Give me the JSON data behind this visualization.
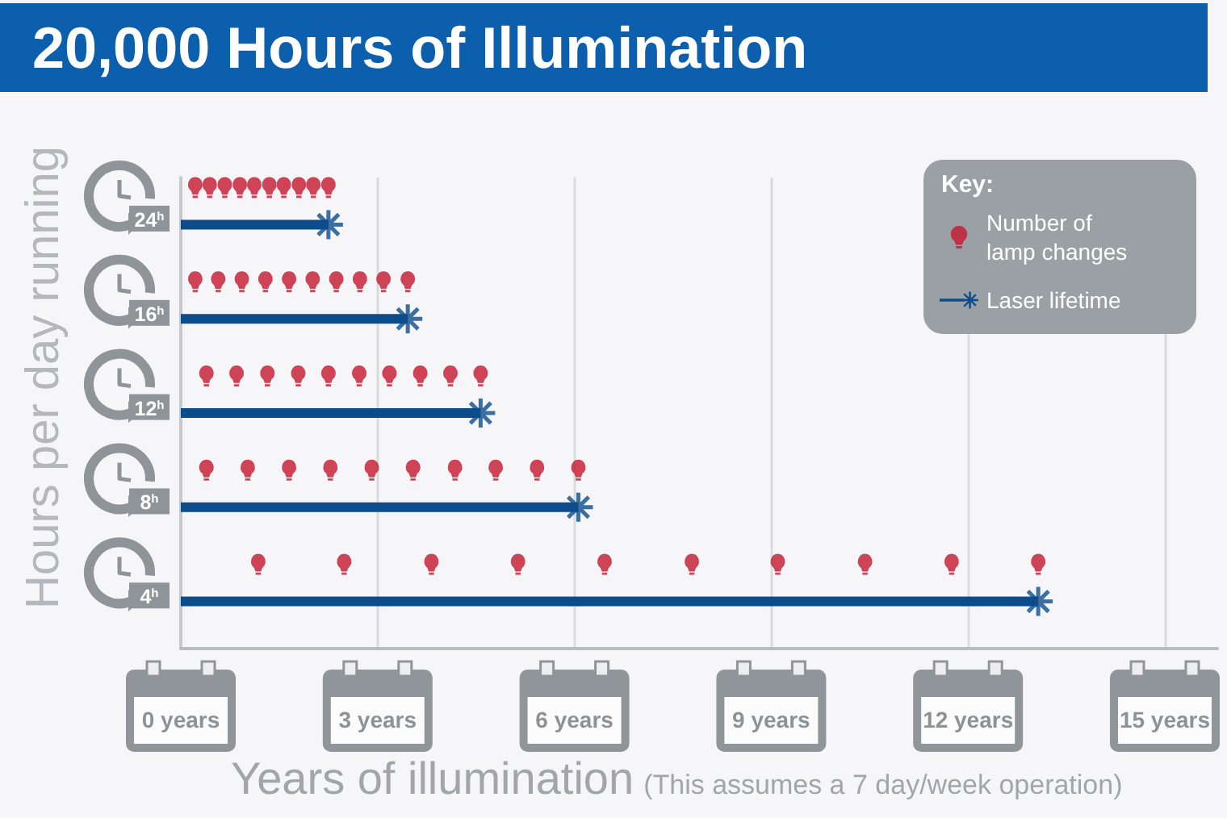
{
  "chart_data": {
    "type": "lollipop",
    "orientation": "horizontal",
    "title": "20,000 Hours of Illumination",
    "xlabel": "Years of illumination",
    "ylabel": "Hours per day running",
    "legend_title": "Key:",
    "annotations": [
      "(This assumes a 7 day/week operation)"
    ],
    "categories": [
      "24$^{h}$",
      "16$^{h}$",
      "12$^{h}$",
      "8$^{h}$",
      "4$^{h}$"
    ],
    "xlim": [
      0,
      15.8
    ],
    "xticks": [
      {
        "value": 0,
        "label": "0 years"
      },
      {
        "value": 3,
        "label": "3 years"
      },
      {
        "value": 6,
        "label": "6 years"
      },
      {
        "value": 9,
        "label": "9 years"
      },
      {
        "value": 12,
        "label": "12 years"
      },
      {
        "value": 15,
        "label": "15 years"
      }
    ],
    "grid": "x",
    "legend": "top right",
    "series": [
      {
        "name": "Number of lamp changes",
        "type": "scatter",
        "color": "#c5162e",
        "marker": "circle",
        "x": [
          "24$^{h}$",
          "24$^{h}$",
          "24$^{h}$",
          "24$^{h}$",
          "24$^{h}$",
          "24$^{h}$",
          "24$^{h}$",
          "24$^{h}$",
          "24$^{h}$",
          "24$^{h}$",
          "16$^{h}$",
          "16$^{h}$",
          "16$^{h}$",
          "16$^{h}$",
          "16$^{h}$",
          "16$^{h}$",
          "16$^{h}$",
          "16$^{h}$",
          "16$^{h}$",
          "16$^{h}$",
          "12$^{h}$",
          "12$^{h}$",
          "12$^{h}$",
          "12$^{h}$",
          "12$^{h}$",
          "12$^{h}$",
          "12$^{h}$",
          "12$^{h}$",
          "12$^{h}$",
          "12$^{h}$",
          "8$^{h}$",
          "8$^{h}$",
          "8$^{h}$",
          "8$^{h}$",
          "8$^{h}$",
          "8$^{h}$",
          "8$^{h}$",
          "8$^{h}$",
          "8$^{h}$",
          "8$^{h}$",
          "4$^{h}$",
          "4$^{h}$",
          "4$^{h}$",
          "4$^{h}$",
          "4$^{h}$",
          "4$^{h}$",
          "4$^{h}$",
          "4$^{h}$",
          "4$^{h}$",
          "4$^{h}$"
        ],
        "values": [
          0.22,
          0.44,
          0.67,
          0.9,
          1.12,
          1.35,
          1.57,
          1.8,
          2.02,
          2.25,
          0.22,
          0.57,
          0.93,
          1.29,
          1.65,
          2.01,
          2.37,
          2.73,
          3.09,
          3.46,
          0.39,
          0.85,
          1.32,
          1.79,
          2.25,
          2.72,
          3.18,
          3.65,
          4.11,
          4.57,
          0.39,
          1.02,
          1.65,
          2.28,
          2.91,
          3.54,
          4.18,
          4.8,
          5.43,
          6.06,
          1.18,
          2.49,
          3.82,
          5.14,
          6.46,
          7.79,
          9.1,
          10.43,
          11.75,
          13.07
        ]
      },
      {
        "name": "Laser lifetime",
        "color": "#0d4c8b",
        "marker": "cross",
        "values": [
          2.25,
          3.46,
          4.57,
          6.06,
          13.07
        ]
      }
    ]
  }
}
